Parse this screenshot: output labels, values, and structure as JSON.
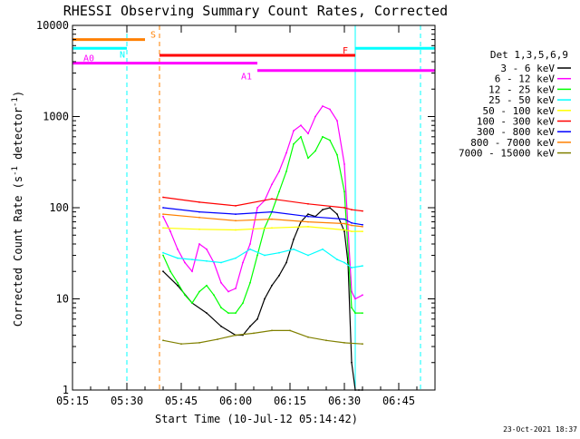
{
  "chart_data": {
    "type": "line",
    "title": "RHESSI Observing Summary Count Rates, Corrected",
    "xlabel": "Start Time (10-Jul-12 05:14:42)",
    "ylabel_prefix": "Corrected Count Rate (s",
    "ylabel_sup": "-1",
    "ylabel_suffix": " detector",
    "ylabel_end": ")",
    "xlim": [
      "05:15",
      "06:55"
    ],
    "xticks": [
      "05:15",
      "05:30",
      "05:45",
      "06:00",
      "06:15",
      "06:30",
      "06:45"
    ],
    "y_scale": "log",
    "ylim": [
      1,
      10000
    ],
    "yticks": [
      "1",
      "10",
      "100",
      "1000",
      "10000"
    ],
    "legend_title": "Det 1,3,5,6,9",
    "legend_position": "right",
    "series": [
      {
        "name": "3 - 6 keV",
        "color": "#000000",
        "x": [
          "05:40",
          "05:44",
          "05:48",
          "05:52",
          "05:56",
          "06:00",
          "06:02",
          "06:04",
          "06:06",
          "06:08",
          "06:10",
          "06:12",
          "06:14",
          "06:16",
          "06:18",
          "06:20",
          "06:22",
          "06:24",
          "06:26",
          "06:28",
          "06:30",
          "06:31",
          "06:32",
          "06:33",
          "06:34",
          "06:35"
        ],
        "values": [
          20,
          14,
          9,
          7,
          5,
          4,
          4,
          5,
          6,
          10,
          14,
          18,
          25,
          45,
          70,
          85,
          80,
          95,
          100,
          85,
          55,
          25,
          2,
          1,
          1,
          1
        ]
      },
      {
        "name": "6 - 12 keV",
        "color": "#ff00ff",
        "x": [
          "05:40",
          "05:42",
          "05:44",
          "05:46",
          "05:48",
          "05:50",
          "05:52",
          "05:54",
          "05:56",
          "05:58",
          "06:00",
          "06:02",
          "06:04",
          "06:06",
          "06:08",
          "06:10",
          "06:12",
          "06:14",
          "06:16",
          "06:18",
          "06:20",
          "06:22",
          "06:24",
          "06:26",
          "06:28",
          "06:30",
          "06:32",
          "06:33",
          "06:35"
        ],
        "values": [
          80,
          55,
          35,
          25,
          20,
          40,
          35,
          25,
          15,
          12,
          13,
          25,
          40,
          100,
          120,
          180,
          250,
          400,
          700,
          800,
          650,
          1000,
          1300,
          1200,
          900,
          300,
          12,
          10,
          11
        ]
      },
      {
        "name": "12 - 25 keV",
        "color": "#00ff00",
        "x": [
          "05:40",
          "05:42",
          "05:44",
          "05:46",
          "05:48",
          "05:50",
          "05:52",
          "05:54",
          "05:56",
          "05:58",
          "06:00",
          "06:02",
          "06:04",
          "06:06",
          "06:08",
          "06:10",
          "06:12",
          "06:14",
          "06:16",
          "06:18",
          "06:20",
          "06:22",
          "06:24",
          "06:26",
          "06:28",
          "06:30",
          "06:32",
          "06:33",
          "06:35"
        ],
        "values": [
          30,
          20,
          15,
          11,
          9,
          12,
          14,
          11,
          8,
          7,
          7,
          9,
          15,
          30,
          60,
          90,
          150,
          250,
          500,
          600,
          350,
          420,
          600,
          550,
          380,
          150,
          8,
          7,
          7
        ]
      },
      {
        "name": "25 - 50 keV",
        "color": "#00ffff",
        "x": [
          "05:40",
          "05:44",
          "05:48",
          "05:52",
          "05:56",
          "06:00",
          "06:04",
          "06:08",
          "06:12",
          "06:16",
          "06:20",
          "06:24",
          "06:28",
          "06:30",
          "06:32",
          "06:35"
        ],
        "values": [
          32,
          28,
          27,
          26,
          25,
          28,
          35,
          30,
          32,
          35,
          30,
          35,
          27,
          25,
          22,
          23
        ]
      },
      {
        "name": "50 - 100 keV",
        "color": "#ffff00",
        "x": [
          "05:40",
          "05:50",
          "06:00",
          "06:10",
          "06:20",
          "06:30",
          "06:32",
          "06:35"
        ],
        "values": [
          60,
          58,
          57,
          60,
          62,
          57,
          55,
          55
        ]
      },
      {
        "name": "100 - 300 keV",
        "color": "#ff0000",
        "x": [
          "05:40",
          "05:50",
          "06:00",
          "06:10",
          "06:20",
          "06:30",
          "06:32",
          "06:35"
        ],
        "values": [
          130,
          115,
          105,
          125,
          110,
          100,
          95,
          92
        ]
      },
      {
        "name": "300 - 800 keV",
        "color": "#0000ff",
        "x": [
          "05:40",
          "05:50",
          "06:00",
          "06:10",
          "06:20",
          "06:30",
          "06:32",
          "06:35"
        ],
        "values": [
          100,
          90,
          85,
          90,
          80,
          75,
          68,
          65
        ]
      },
      {
        "name": "800 - 7000 keV",
        "color": "#ff8000",
        "x": [
          "05:40",
          "05:50",
          "06:00",
          "06:10",
          "06:20",
          "06:30",
          "06:32",
          "06:35"
        ],
        "values": [
          85,
          78,
          72,
          75,
          70,
          67,
          64,
          62
        ]
      },
      {
        "name": "7000 - 15000 keV",
        "color": "#808000",
        "x": [
          "05:40",
          "05:45",
          "05:50",
          "05:55",
          "06:00",
          "06:05",
          "06:10",
          "06:15",
          "06:20",
          "06:25",
          "06:30",
          "06:35"
        ],
        "values": [
          3.5,
          3.2,
          3.3,
          3.6,
          4,
          4.2,
          4.5,
          4.5,
          3.8,
          3.5,
          3.3,
          3.2
        ]
      }
    ],
    "flag_bars": [
      {
        "label": "S",
        "color": "#ff8000",
        "start": "05:15",
        "end": "05:35",
        "level": 7000
      },
      {
        "label": "N",
        "color": "#00ffff",
        "start": "05:15",
        "end": "05:30",
        "level": 5600
      },
      {
        "label": "N",
        "color": "#00ffff",
        "start": "06:33",
        "end": "06:55",
        "level": 5600
      },
      {
        "label": "F",
        "color": "#ff0000",
        "start": "05:39",
        "end": "06:33",
        "level": 4700
      },
      {
        "label": "A0",
        "color": "#ff00ff",
        "start": "05:15",
        "end": "06:06",
        "level": 3850
      },
      {
        "label": "A1",
        "color": "#ff00ff",
        "start": "06:06",
        "end": "06:55",
        "level": 3200
      }
    ],
    "vertical_markers": [
      {
        "time": "05:15",
        "color": "#00ffff",
        "style": "solid"
      },
      {
        "time": "05:30",
        "color": "#00ffff",
        "style": "dashed"
      },
      {
        "time": "05:39",
        "color": "#ff8000",
        "style": "dashed"
      },
      {
        "time": "06:33",
        "color": "#00ffff",
        "style": "solid"
      },
      {
        "time": "06:51",
        "color": "#00ffff",
        "style": "dashed"
      }
    ],
    "footer_date": "23-Oct-2021 18:37"
  }
}
